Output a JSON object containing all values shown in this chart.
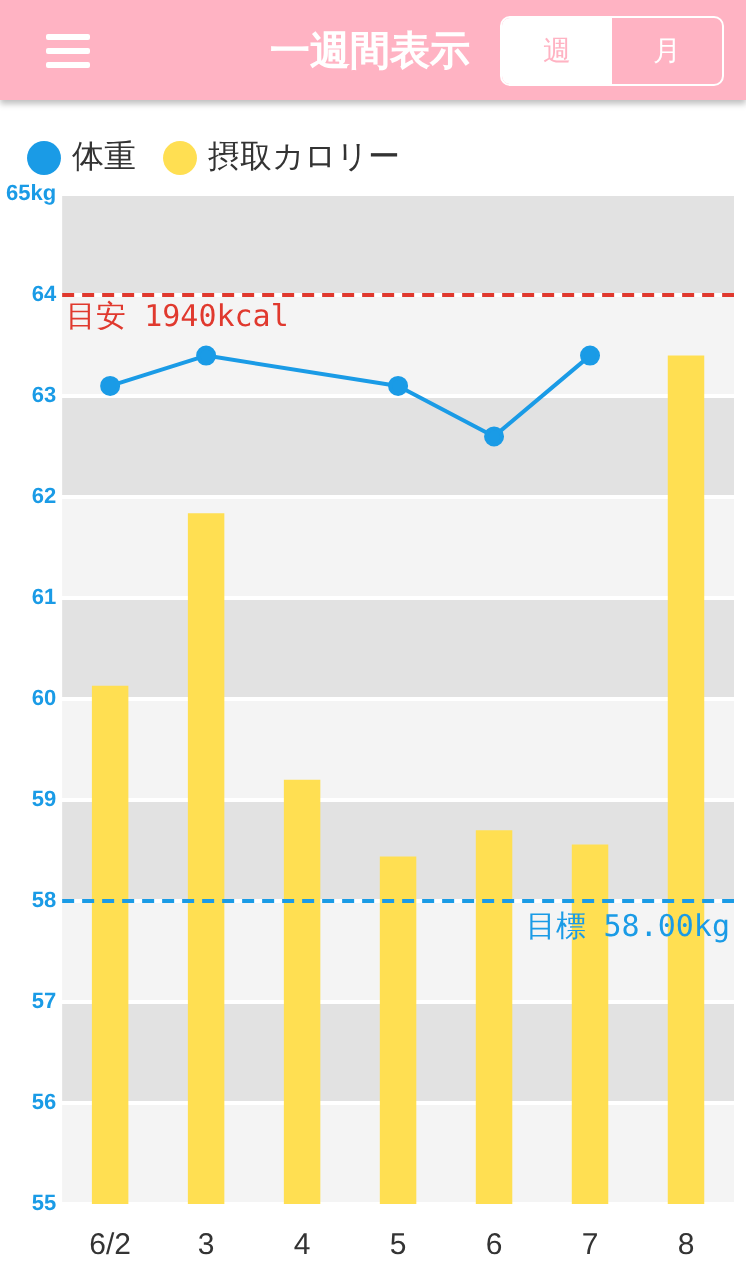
{
  "chart_data": {
    "type": "bar",
    "title": "一週間表示",
    "annotations": [
      "週",
      "月"
    ],
    "categories": [
      "6/2",
      "3",
      "4",
      "5",
      "6",
      "7",
      "8"
    ],
    "series": [
      {
        "name": "体重",
        "type": "line",
        "color": "#1a9be6",
        "values": [
          63.1,
          63.4,
          null,
          63.1,
          62.6,
          63.4,
          null
        ]
      },
      {
        "name": "摂取カロリー",
        "color": "#ffdf52",
        "values": [
          60.13,
          61.84,
          59.2,
          58.44,
          58.7,
          58.56,
          63.4
        ]
      }
    ],
    "ylim": [
      55,
      65
    ],
    "yticks": [
      55,
      56,
      57,
      58,
      59,
      60,
      61,
      62,
      63,
      64,
      {
        "value": 65,
        "label": "65kg"
      }
    ],
    "ref_lines": [
      {
        "axis": "y",
        "value": 64,
        "label": "目安 1940kcal",
        "color": "#e0392e",
        "line_style": "dashed"
      },
      {
        "axis": "y",
        "value": 58,
        "label": "目標 58.00kg",
        "color": "#1a9be6",
        "line_style": "dashed"
      }
    ],
    "grid": "y",
    "legend": "top left",
    "marker": "circle"
  }
}
